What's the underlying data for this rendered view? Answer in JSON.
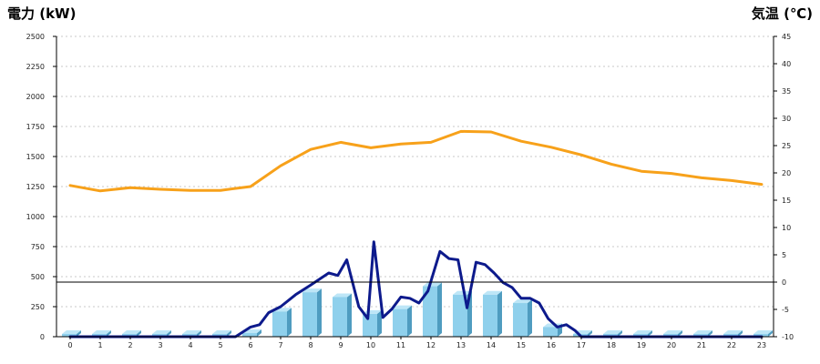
{
  "chart_data": {
    "type": "bar",
    "left_axis_title": "電力 (kW)",
    "right_axis_title": "気温 (℃)",
    "colors": {
      "left_title": "#1f6fb5",
      "right_title": "#f08a00",
      "bar_front": "#8fd0ec",
      "bar_side": "#4f9cc0",
      "bar_top": "#bde6f7",
      "power_line": "#0d1a8c",
      "temp_line": "#f7a11a"
    },
    "grid": true,
    "left_ylim": [
      0,
      2500
    ],
    "right_ylim": [
      -10,
      45
    ],
    "left_ticks": [
      "0",
      "250",
      "500",
      "750",
      "1000",
      "1250",
      "1500",
      "1750",
      "2000",
      "2250",
      "2500"
    ],
    "right_ticks": [
      "-10",
      "-5",
      "0",
      "5",
      "10",
      "15",
      "20",
      "25",
      "30",
      "35",
      "40",
      "45"
    ],
    "categories": [
      "0",
      "1",
      "2",
      "3",
      "4",
      "5",
      "6",
      "7",
      "8",
      "9",
      "10",
      "11",
      "12",
      "13",
      "14",
      "15",
      "16",
      "17",
      "18",
      "19",
      "20",
      "21",
      "22",
      "23"
    ],
    "series": [
      {
        "kind": "bar",
        "axis": "left",
        "values": [
          0,
          0,
          0,
          0,
          0,
          0,
          30,
          210,
          370,
          330,
          190,
          230,
          420,
          350,
          350,
          280,
          80,
          0,
          0,
          0,
          0,
          0,
          0,
          0
        ]
      },
      {
        "kind": "line",
        "axis": "left",
        "x": [
          0,
          1,
          2,
          3,
          4,
          5,
          5.5,
          6,
          6.3,
          6.6,
          7,
          7.5,
          8,
          8.3,
          8.6,
          8.9,
          9.2,
          9.6,
          9.9,
          10.1,
          10.4,
          10.7,
          11,
          11.3,
          11.6,
          11.9,
          12.3,
          12.6,
          12.9,
          13.2,
          13.5,
          13.8,
          14.1,
          14.4,
          14.7,
          15,
          15.3,
          15.6,
          15.9,
          16.2,
          16.5,
          16.8,
          17,
          18,
          19,
          20,
          21,
          22,
          23
        ],
        "values": [
          0,
          0,
          0,
          0,
          0,
          0,
          0,
          80,
          100,
          200,
          250,
          350,
          430,
          480,
          530,
          510,
          640,
          250,
          150,
          790,
          160,
          230,
          330,
          320,
          280,
          380,
          710,
          650,
          640,
          240,
          620,
          600,
          530,
          450,
          410,
          320,
          320,
          280,
          150,
          80,
          100,
          50,
          0,
          0,
          0,
          0,
          0,
          0,
          0
        ]
      },
      {
        "kind": "line",
        "axis": "right",
        "values": [
          17.7,
          16.7,
          17.3,
          17.0,
          16.8,
          16.8,
          17.5,
          21.3,
          24.3,
          25.6,
          24.6,
          25.3,
          25.6,
          27.6,
          27.5,
          25.8,
          24.7,
          23.3,
          21.6,
          20.3,
          19.9,
          19.1,
          18.6,
          17.9
        ]
      }
    ]
  }
}
